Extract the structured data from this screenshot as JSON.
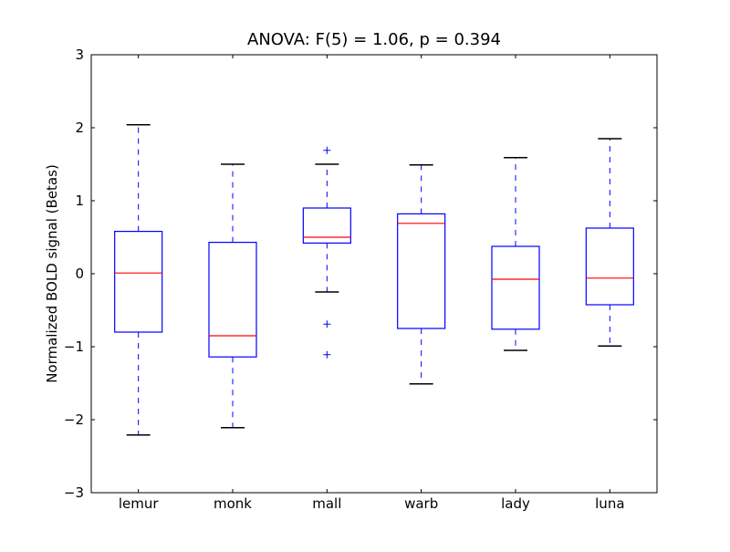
{
  "chart_data": {
    "type": "box",
    "title": "ANOVA: F(5) = 1.06, p = 0.394",
    "xlabel": "",
    "ylabel": "Normalized BOLD signal (Betas)",
    "ylim": [
      -3,
      3
    ],
    "yticks": [
      -3,
      -2,
      -1,
      0,
      1,
      2,
      3
    ],
    "ytick_labels": [
      "−3",
      "−2",
      "−1",
      "0",
      "1",
      "2",
      "3"
    ],
    "grid": false,
    "colors": {
      "box": "#0000ff",
      "median": "#ff0000",
      "cap": "#000000",
      "outlier": "#0000ff"
    },
    "categories": [
      "lemur",
      "monk",
      "mall",
      "warb",
      "lady",
      "luna"
    ],
    "boxes": [
      {
        "whisker_low": -2.21,
        "q1": -0.8,
        "median": 0.01,
        "q3": 0.58,
        "whisker_high": 2.04,
        "outliers": []
      },
      {
        "whisker_low": -2.11,
        "q1": -1.14,
        "median": -0.85,
        "q3": 0.43,
        "whisker_high": 1.5,
        "outliers": []
      },
      {
        "whisker_low": -0.25,
        "q1": 0.42,
        "median": 0.5,
        "q3": 0.9,
        "whisker_high": 1.5,
        "outliers": [
          1.69,
          -0.69,
          -1.11
        ]
      },
      {
        "whisker_low": -1.51,
        "q1": -0.75,
        "median": 0.69,
        "q3": 0.82,
        "whisker_high": 1.49,
        "outliers": []
      },
      {
        "whisker_low": -1.05,
        "q1": -0.76,
        "median": -0.075,
        "q3": 0.375,
        "whisker_high": 1.59,
        "outliers": []
      },
      {
        "whisker_low": -0.99,
        "q1": -0.425,
        "median": -0.06,
        "q3": 0.625,
        "whisker_high": 1.85,
        "outliers": []
      }
    ]
  }
}
